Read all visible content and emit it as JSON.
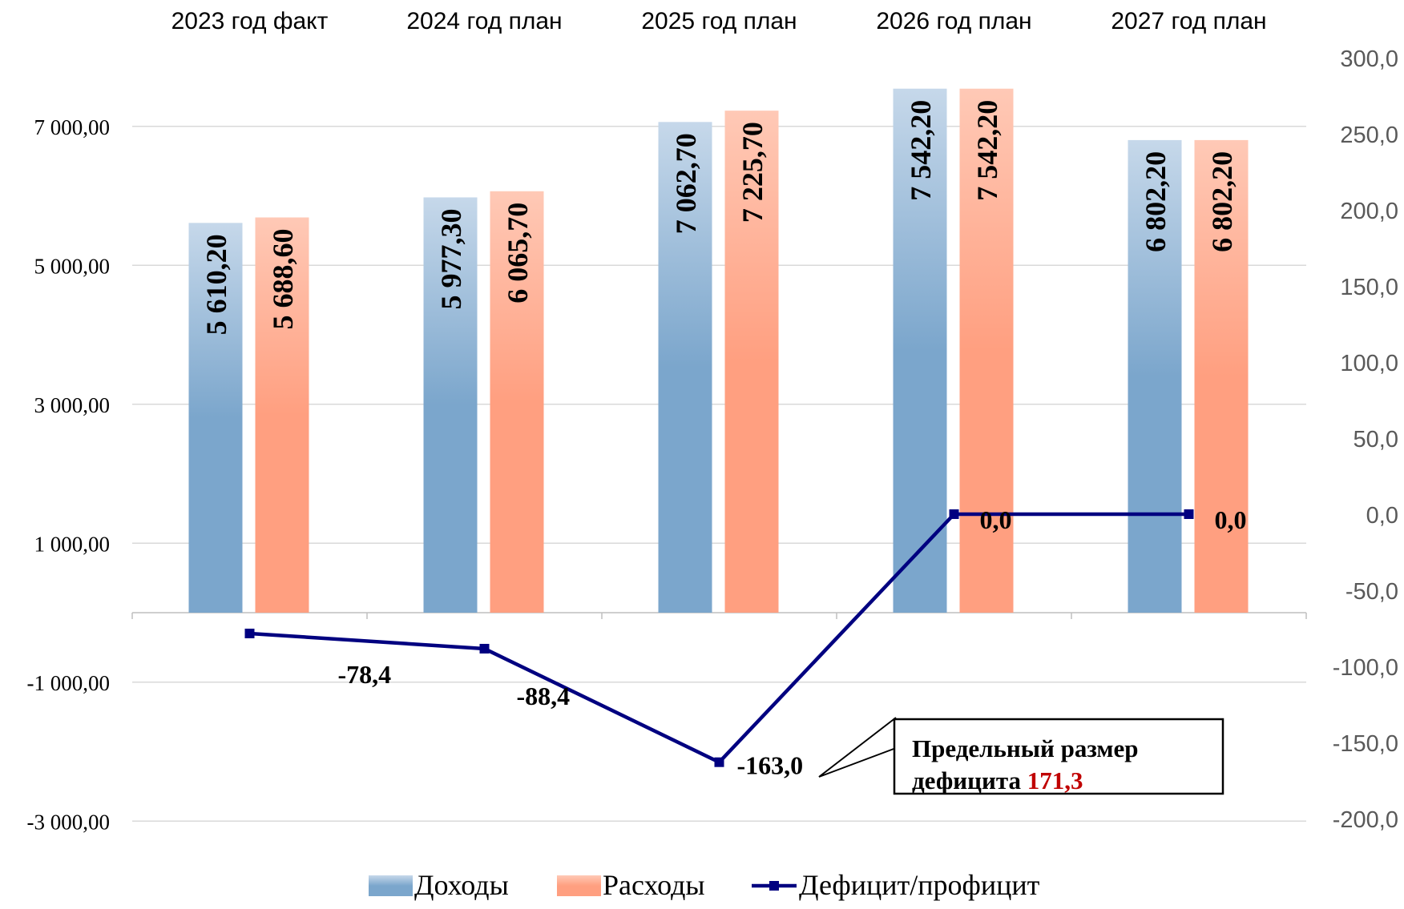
{
  "chart_data": {
    "type": "bar",
    "categories": [
      "2023 год факт",
      "2024 год план",
      "2025 год план",
      "2026 год план",
      "2027 год план"
    ],
    "series": [
      {
        "name": "Доходы",
        "kind": "bar",
        "axis": "left",
        "values": [
          5610.2,
          5977.3,
          7062.7,
          7542.2,
          6802.2
        ],
        "labels": [
          "5 610,20",
          "5 977,30",
          "7 062,70",
          "7 542,20",
          "6 802,20"
        ],
        "color": "#7ba6cc"
      },
      {
        "name": "Расходы",
        "kind": "bar",
        "axis": "left",
        "values": [
          5688.6,
          6065.7,
          7225.7,
          7542.2,
          6802.2
        ],
        "labels": [
          "5 688,60",
          "6 065,70",
          "7 225,70",
          "7 542,20",
          "6 802,20"
        ],
        "color": "#ff9f80"
      },
      {
        "name": "Дефицит/профицит",
        "kind": "line",
        "axis": "right",
        "values": [
          -78.4,
          -88.4,
          -163.0,
          0.0,
          0.0
        ],
        "labels": [
          "-78,4",
          "-88,4",
          "-163,0",
          "0,0",
          "0,0"
        ],
        "color": "#000080"
      }
    ],
    "left_axis": {
      "ylim": [
        -3000,
        8000
      ],
      "ticks": [
        7000,
        5000,
        3000,
        1000,
        -1000,
        -3000
      ],
      "tick_labels": [
        "7 000,00",
        "5 000,00",
        "3 000,00",
        "1 000,00",
        "-1 000,00",
        "-3 000,00"
      ]
    },
    "right_axis": {
      "ylim": [
        -200,
        300
      ],
      "ticks": [
        300,
        250,
        200,
        150,
        100,
        50,
        0,
        -50,
        -100,
        -150,
        -200
      ],
      "tick_labels": [
        "300,0",
        "250,0",
        "200,0",
        "150,0",
        "100,0",
        "50,0",
        "0,0",
        "-50,0",
        "-100,0",
        "-150,0",
        "-200,0"
      ]
    },
    "category_axis_position": "top",
    "grid": true,
    "legend_position": "bottom",
    "annotation": {
      "text": "Предельный размер дефицита",
      "line1": "Предельный размер",
      "line2": "дефицита",
      "value": "171,3",
      "value_color": "#c00000",
      "points_to": "2025 год план"
    }
  }
}
